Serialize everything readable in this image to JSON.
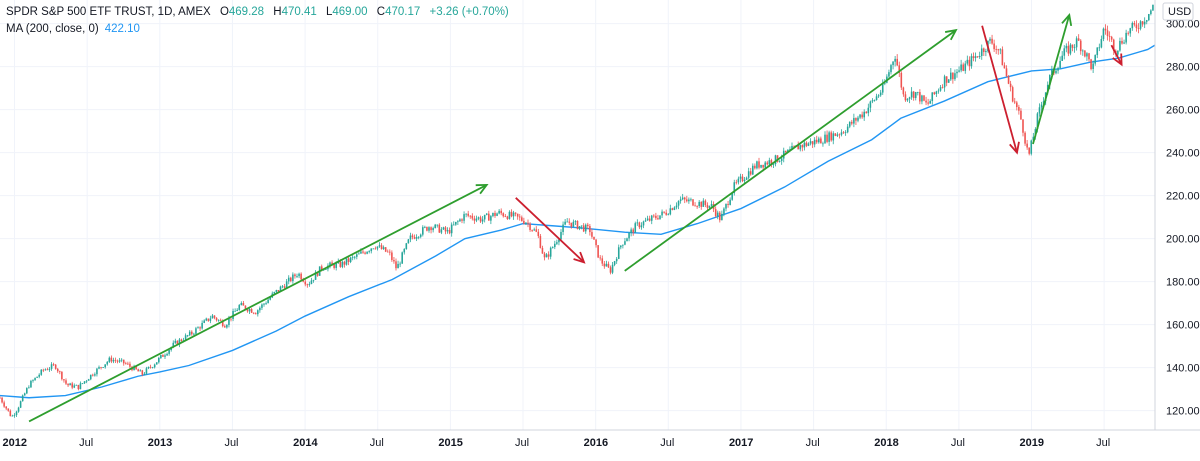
{
  "legend": {
    "symbol_line": "SPDR S&P 500 ETF TRUST, 1D, AMEX",
    "open_label": "O",
    "open_value": "469.28",
    "high_label": "H",
    "high_value": "470.41",
    "low_label": "L",
    "low_value": "469.00",
    "close_label": "C",
    "close_value": "470.17",
    "change": "+3.26 (+0.70%)",
    "ma_label": "MA (200, close, 0)",
    "ma_value": "422.10"
  },
  "colors": {
    "up": "#26a69a",
    "down": "#ef5350",
    "ma": "#2196f3",
    "trend_up_arrow": "#2e9e2e",
    "trend_down_arrow": "#cc1f2f",
    "grid": "#f0f3fa",
    "axis_text": "#131722"
  },
  "chart_data": {
    "type": "candlestick",
    "currency_label": "USD",
    "x_ticks": [
      {
        "label": "2012",
        "date": 2012.0
      },
      {
        "label": "Jul",
        "date": 2012.5
      },
      {
        "label": "2013",
        "date": 2013.0
      },
      {
        "label": "Jul",
        "date": 2013.5
      },
      {
        "label": "2014",
        "date": 2014.0
      },
      {
        "label": "Jul",
        "date": 2014.5
      },
      {
        "label": "2015",
        "date": 2015.0
      },
      {
        "label": "Jul",
        "date": 2015.5
      },
      {
        "label": "2016",
        "date": 2016.0
      },
      {
        "label": "Jul",
        "date": 2016.5
      },
      {
        "label": "2017",
        "date": 2017.0
      },
      {
        "label": "Jul",
        "date": 2017.5
      },
      {
        "label": "2018",
        "date": 2018.0
      },
      {
        "label": "Jul",
        "date": 2018.5
      },
      {
        "label": "2019",
        "date": 2019.0
      },
      {
        "label": "Jul",
        "date": 2019.5
      }
    ],
    "y_ticks": [
      "120.00",
      "140.00",
      "160.00",
      "180.00",
      "200.00",
      "220.00",
      "240.00",
      "260.00",
      "280.00",
      "300.00"
    ],
    "x_range": [
      2011.9,
      2019.85
    ],
    "y_range": [
      111,
      311
    ],
    "grid": true,
    "price_path": [
      [
        2011.9,
        126
      ],
      [
        2011.98,
        117
      ],
      [
        2012.02,
        121
      ],
      [
        2012.1,
        132
      ],
      [
        2012.2,
        139
      ],
      [
        2012.28,
        141
      ],
      [
        2012.36,
        132
      ],
      [
        2012.44,
        131
      ],
      [
        2012.55,
        138
      ],
      [
        2012.66,
        144
      ],
      [
        2012.76,
        142
      ],
      [
        2012.88,
        137
      ],
      [
        2012.98,
        143
      ],
      [
        2013.1,
        151
      ],
      [
        2013.22,
        156
      ],
      [
        2013.36,
        164
      ],
      [
        2013.45,
        160
      ],
      [
        2013.55,
        169
      ],
      [
        2013.66,
        166
      ],
      [
        2013.78,
        174
      ],
      [
        2013.95,
        184
      ],
      [
        2014.02,
        179
      ],
      [
        2014.12,
        187
      ],
      [
        2014.25,
        188
      ],
      [
        2014.36,
        192
      ],
      [
        2014.48,
        197
      ],
      [
        2014.58,
        193
      ],
      [
        2014.63,
        186
      ],
      [
        2014.72,
        200
      ],
      [
        2014.86,
        206
      ],
      [
        2014.98,
        203
      ],
      [
        2015.1,
        211
      ],
      [
        2015.22,
        209
      ],
      [
        2015.33,
        212
      ],
      [
        2015.45,
        210
      ],
      [
        2015.52,
        208
      ],
      [
        2015.6,
        202
      ],
      [
        2015.65,
        190
      ],
      [
        2015.72,
        198
      ],
      [
        2015.8,
        208
      ],
      [
        2015.88,
        206
      ],
      [
        2015.96,
        204
      ],
      [
        2016.03,
        190
      ],
      [
        2016.1,
        185
      ],
      [
        2016.18,
        198
      ],
      [
        2016.28,
        206
      ],
      [
        2016.38,
        209
      ],
      [
        2016.48,
        212
      ],
      [
        2016.58,
        218
      ],
      [
        2016.68,
        217
      ],
      [
        2016.8,
        215
      ],
      [
        2016.86,
        209
      ],
      [
        2016.95,
        224
      ],
      [
        2017.1,
        234
      ],
      [
        2017.25,
        237
      ],
      [
        2017.4,
        243
      ],
      [
        2017.55,
        246
      ],
      [
        2017.7,
        250
      ],
      [
        2017.85,
        259
      ],
      [
        2017.98,
        270
      ],
      [
        2018.06,
        286
      ],
      [
        2018.12,
        266
      ],
      [
        2018.2,
        268
      ],
      [
        2018.28,
        262
      ],
      [
        2018.4,
        274
      ],
      [
        2018.52,
        279
      ],
      [
        2018.62,
        285
      ],
      [
        2018.72,
        292
      ],
      [
        2018.78,
        287
      ],
      [
        2018.86,
        268
      ],
      [
        2018.93,
        255
      ],
      [
        2018.98,
        238
      ],
      [
        2019.04,
        256
      ],
      [
        2019.12,
        274
      ],
      [
        2019.22,
        286
      ],
      [
        2019.32,
        292
      ],
      [
        2019.38,
        285
      ],
      [
        2019.42,
        279
      ],
      [
        2019.5,
        298
      ],
      [
        2019.58,
        288
      ],
      [
        2019.66,
        296
      ],
      [
        2019.74,
        300
      ],
      [
        2019.8,
        304
      ],
      [
        2019.85,
        309
      ]
    ],
    "ma_path": [
      [
        2011.9,
        127
      ],
      [
        2012.1,
        126
      ],
      [
        2012.35,
        127
      ],
      [
        2012.6,
        131
      ],
      [
        2012.85,
        136
      ],
      [
        2013.0,
        138
      ],
      [
        2013.2,
        141
      ],
      [
        2013.5,
        148
      ],
      [
        2013.8,
        157
      ],
      [
        2014.0,
        164
      ],
      [
        2014.3,
        173
      ],
      [
        2014.6,
        181
      ],
      [
        2014.9,
        192
      ],
      [
        2015.1,
        200
      ],
      [
        2015.35,
        204
      ],
      [
        2015.5,
        207
      ],
      [
        2015.7,
        206
      ],
      [
        2015.9,
        205
      ],
      [
        2016.2,
        203
      ],
      [
        2016.45,
        202
      ],
      [
        2016.7,
        207
      ],
      [
        2017.0,
        214
      ],
      [
        2017.3,
        224
      ],
      [
        2017.6,
        236
      ],
      [
        2017.9,
        246
      ],
      [
        2018.1,
        256
      ],
      [
        2018.4,
        264
      ],
      [
        2018.7,
        273
      ],
      [
        2019.0,
        278
      ],
      [
        2019.2,
        279
      ],
      [
        2019.4,
        282
      ],
      [
        2019.6,
        284
      ],
      [
        2019.8,
        288
      ],
      [
        2019.85,
        290
      ]
    ],
    "trend_arrows": [
      {
        "direction": "up",
        "from": [
          2012.1,
          115
        ],
        "to": [
          2015.25,
          225
        ]
      },
      {
        "direction": "down",
        "from": [
          2015.45,
          219
        ],
        "to": [
          2015.92,
          189
        ]
      },
      {
        "direction": "up",
        "from": [
          2016.2,
          185
        ],
        "to": [
          2018.48,
          297
        ]
      },
      {
        "direction": "down",
        "from": [
          2018.66,
          299
        ],
        "to": [
          2018.9,
          240
        ]
      },
      {
        "direction": "up",
        "from": [
          2019.01,
          244
        ],
        "to": [
          2019.26,
          304
        ]
      },
      {
        "direction": "down",
        "from": [
          2019.55,
          290
        ],
        "to": [
          2019.62,
          281
        ]
      }
    ]
  }
}
